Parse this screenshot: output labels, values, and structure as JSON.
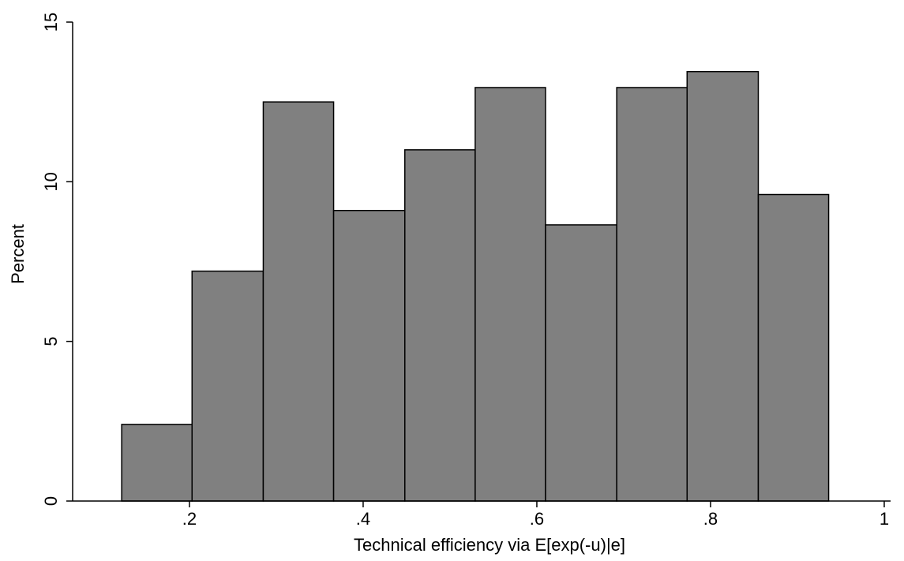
{
  "chart_data": {
    "type": "histogram",
    "xlabel": "Technical efficiency via E[exp(-u)|e]",
    "ylabel": "Percent",
    "bins": [
      0.122,
      0.203,
      0.285,
      0.366,
      0.448,
      0.529,
      0.61,
      0.692,
      0.773,
      0.855,
      0.936
    ],
    "values": [
      2.4,
      7.2,
      12.5,
      9.1,
      11.0,
      12.95,
      8.65,
      12.95,
      13.45,
      9.6
    ],
    "color": "#808080",
    "xlim": [
      0.0655,
      1.0073
    ],
    "xticks": [
      {
        "value": 0.2,
        "label": ".2"
      },
      {
        "value": 0.4,
        "label": ".4"
      },
      {
        "value": 0.6,
        "label": ".6"
      },
      {
        "value": 0.8,
        "label": ".8"
      },
      1
    ],
    "ylim": [
      0,
      15
    ],
    "yticks": [
      0,
      5,
      10,
      15
    ],
    "grid": false
  }
}
